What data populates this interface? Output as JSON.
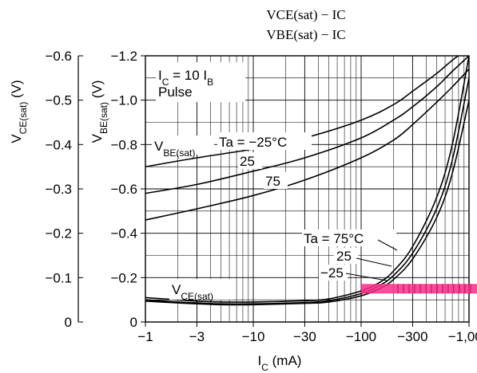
{
  "chart_data": {
    "type": "line",
    "title_lines": [
      "VCE(sat) − IC",
      "VBE(sat) − IC"
    ],
    "x_label": "IC (mA)",
    "x_scale": "log",
    "x_ticks": [
      "−1",
      "−3",
      "−10",
      "−30",
      "−100",
      "−300",
      "−1,000"
    ],
    "x_tick_values": [
      1,
      3,
      10,
      30,
      100,
      300,
      1000
    ],
    "x_range": [
      1,
      1000
    ],
    "y_right_label": "VBE(sat) (V)",
    "y_right_ticks": [
      "0",
      "−0.2",
      "−0.4",
      "−0.6",
      "−0.8",
      "−1.0",
      "−1.2"
    ],
    "y_right_range": [
      0,
      -1.2
    ],
    "y_left_label": "VCE(sat) (V)",
    "y_left_ticks": [
      "0",
      "−0.1",
      "−0.2",
      "−0.3",
      "−0.4",
      "−0.5",
      "−0.6"
    ],
    "y_left_range": [
      0,
      -0.6
    ],
    "grid": true,
    "conditions": [
      "IC = 10 IB",
      "Pulse"
    ],
    "annotations": {
      "vbe_label": "VBE(sat)",
      "vce_label": "VCE(sat)",
      "vbe_temps": [
        "Ta = −25°C",
        "25",
        "75"
      ],
      "vce_temps": [
        "Ta = 75°C",
        "25",
        "−25"
      ]
    },
    "series": [
      {
        "group": "VBE(sat)",
        "label": "Ta = −25°C",
        "axis": "right",
        "x": [
          1,
          3,
          10,
          30,
          100,
          200,
          300,
          500,
          700,
          1000
        ],
        "y": [
          -0.7,
          -0.74,
          -0.78,
          -0.83,
          -0.91,
          -0.98,
          -1.04,
          -1.12,
          -1.18,
          -1.25
        ]
      },
      {
        "group": "VBE(sat)",
        "label": "25",
        "axis": "right",
        "x": [
          1,
          3,
          10,
          30,
          100,
          200,
          300,
          500,
          700,
          1000
        ],
        "y": [
          -0.58,
          -0.62,
          -0.68,
          -0.74,
          -0.83,
          -0.91,
          -0.97,
          -1.06,
          -1.13,
          -1.2
        ]
      },
      {
        "group": "VBE(sat)",
        "label": "75",
        "axis": "right",
        "x": [
          1,
          3,
          10,
          30,
          100,
          200,
          300,
          500,
          700,
          1000
        ],
        "y": [
          -0.46,
          -0.51,
          -0.57,
          -0.64,
          -0.74,
          -0.82,
          -0.89,
          -0.99,
          -1.06,
          -1.14
        ]
      },
      {
        "group": "VCE(sat)",
        "label": "Ta = 75°C",
        "axis": "left",
        "x": [
          1,
          2,
          3,
          5,
          10,
          30,
          50,
          100,
          150,
          200,
          300,
          500,
          700,
          1000
        ],
        "y": [
          -0.055,
          -0.05,
          -0.047,
          -0.045,
          -0.045,
          -0.048,
          -0.052,
          -0.07,
          -0.09,
          -0.115,
          -0.17,
          -0.28,
          -0.4,
          -0.6
        ]
      },
      {
        "group": "VCE(sat)",
        "label": "25",
        "axis": "left",
        "x": [
          1,
          2,
          3,
          5,
          10,
          30,
          50,
          100,
          150,
          200,
          300,
          500,
          700,
          1000
        ],
        "y": [
          -0.05,
          -0.045,
          -0.043,
          -0.041,
          -0.041,
          -0.044,
          -0.048,
          -0.064,
          -0.083,
          -0.105,
          -0.155,
          -0.255,
          -0.365,
          -0.55
        ]
      },
      {
        "group": "VCE(sat)",
        "label": "−25",
        "axis": "left",
        "x": [
          1,
          2,
          3,
          5,
          10,
          30,
          50,
          100,
          150,
          200,
          300,
          500,
          700,
          1000
        ],
        "y": [
          -0.047,
          -0.043,
          -0.041,
          -0.039,
          -0.039,
          -0.042,
          -0.045,
          -0.059,
          -0.076,
          -0.096,
          -0.142,
          -0.235,
          -0.335,
          -0.5
        ]
      }
    ],
    "highlight": {
      "color": "#ff2a8a",
      "x_range": [
        100,
        1000
      ],
      "y_left": -0.075
    }
  }
}
